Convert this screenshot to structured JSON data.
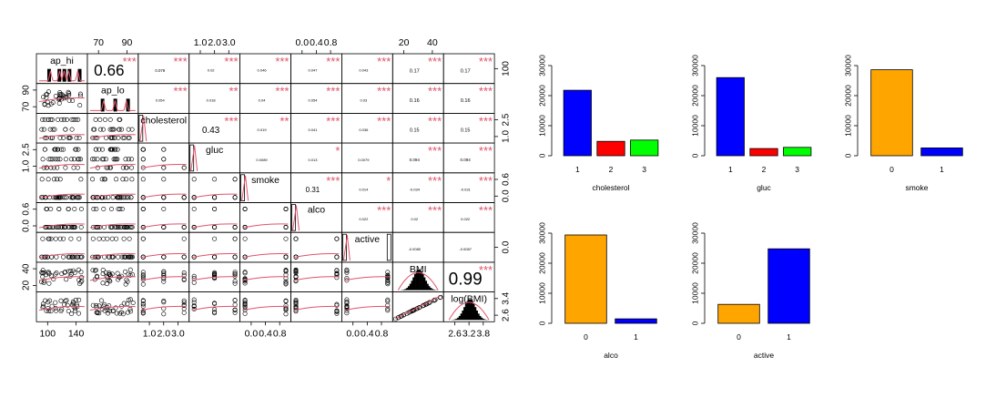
{
  "colors": {
    "smoother": "#df536b",
    "stars": "#df536b",
    "blue": "#0000ff",
    "red": "#ff0000",
    "green": "#00ff00",
    "orange": "#ffa500",
    "axis": "#000000"
  },
  "matrix": {
    "variables": [
      "ap_hi",
      "ap_lo",
      "cholesterol",
      "gluc",
      "smoke",
      "alco",
      "active",
      "BMI",
      "log(BMI)"
    ],
    "top_axis_ticks": {
      "ap_lo": [
        "70",
        "90"
      ],
      "gluc": [
        "1.0",
        "2.0",
        "3.0"
      ],
      "alco": [
        "0.0",
        "0.4",
        "0.8"
      ],
      "BMI": [
        "20",
        "40"
      ]
    },
    "bottom_axis_ticks": {
      "ap_hi": [
        "100",
        "140"
      ],
      "cholesterol": [
        "1.0",
        "2.0",
        "3.0"
      ],
      "smoke": [
        "0.0",
        "0.4",
        "0.8"
      ],
      "active": [
        "0.0",
        "0.4",
        "0.8"
      ],
      "log(BMI)": [
        "2.6",
        "3.2",
        "3.8"
      ]
    },
    "left_axis_ticks": {
      "ap_lo": [
        "70",
        "90"
      ],
      "gluc": [
        "1.0",
        "2.5"
      ],
      "alco": [
        "0.0",
        "0.6"
      ],
      "BMI": [
        "20",
        "40"
      ]
    },
    "right_axis_ticks": {
      "ap_hi": [
        "100"
      ],
      "cholesterol": [
        "1.0",
        "2.5"
      ],
      "smoke": [
        "0.0",
        "0.6"
      ],
      "active": [
        "0.0"
      ],
      "log(BMI)": [
        "2.6",
        "3.4"
      ]
    },
    "correlations": [
      {
        "row": 0,
        "col": 1,
        "label": "0.66",
        "stars": "***"
      },
      {
        "row": 0,
        "col": 2,
        "label": "0.079",
        "stars": "***"
      },
      {
        "row": 0,
        "col": 3,
        "label": "0.02",
        "stars": "***"
      },
      {
        "row": 0,
        "col": 4,
        "label": "0.046",
        "stars": "***"
      },
      {
        "row": 0,
        "col": 5,
        "label": "0.047",
        "stars": "***"
      },
      {
        "row": 0,
        "col": 6,
        "label": "0.043",
        "stars": "***"
      },
      {
        "row": 0,
        "col": 7,
        "label": "0.17",
        "stars": "***"
      },
      {
        "row": 0,
        "col": 8,
        "label": "0.17",
        "stars": "***"
      },
      {
        "row": 1,
        "col": 2,
        "label": "0.054",
        "stars": "***"
      },
      {
        "row": 1,
        "col": 3,
        "label": "0.018",
        "stars": "**"
      },
      {
        "row": 1,
        "col": 4,
        "label": "0.04",
        "stars": "***"
      },
      {
        "row": 1,
        "col": 5,
        "label": "0.054",
        "stars": "***"
      },
      {
        "row": 1,
        "col": 6,
        "label": "0.03",
        "stars": "***"
      },
      {
        "row": 1,
        "col": 7,
        "label": "0.16",
        "stars": "***"
      },
      {
        "row": 1,
        "col": 8,
        "label": "0.16",
        "stars": "***"
      },
      {
        "row": 2,
        "col": 3,
        "label": "0.43",
        "stars": "***"
      },
      {
        "row": 2,
        "col": 4,
        "label": "0.019",
        "stars": "**"
      },
      {
        "row": 2,
        "col": 5,
        "label": "0.041",
        "stars": "***"
      },
      {
        "row": 2,
        "col": 6,
        "label": "0.036",
        "stars": "***"
      },
      {
        "row": 2,
        "col": 7,
        "label": "0.15",
        "stars": "***"
      },
      {
        "row": 2,
        "col": 8,
        "label": "0.15",
        "stars": "***"
      },
      {
        "row": 3,
        "col": 4,
        "label": "0.0089",
        "stars": ""
      },
      {
        "row": 3,
        "col": 5,
        "label": "0.013",
        "stars": "*"
      },
      {
        "row": 3,
        "col": 6,
        "label": "0.0079",
        "stars": ""
      },
      {
        "row": 3,
        "col": 7,
        "label": "0.094",
        "stars": "***"
      },
      {
        "row": 3,
        "col": 8,
        "label": "0.094",
        "stars": "***"
      },
      {
        "row": 4,
        "col": 5,
        "label": "0.31",
        "stars": "***"
      },
      {
        "row": 4,
        "col": 6,
        "label": "0.014",
        "stars": "*"
      },
      {
        "row": 4,
        "col": 7,
        "label": "-0.034",
        "stars": "***"
      },
      {
        "row": 4,
        "col": 8,
        "label": "-0.031",
        "stars": "***"
      },
      {
        "row": 5,
        "col": 6,
        "label": "0.022",
        "stars": "***"
      },
      {
        "row": 5,
        "col": 7,
        "label": "0.02",
        "stars": "***"
      },
      {
        "row": 5,
        "col": 8,
        "label": "0.022",
        "stars": "***"
      },
      {
        "row": 6,
        "col": 7,
        "label": "-0.0080",
        "stars": ""
      },
      {
        "row": 6,
        "col": 8,
        "label": "-0.0087",
        "stars": ""
      },
      {
        "row": 7,
        "col": 8,
        "label": "0.99",
        "stars": "***"
      }
    ]
  },
  "chart_data": [
    {
      "type": "bar",
      "categories": [
        "1",
        "2",
        "3"
      ],
      "values": [
        21800,
        4800,
        5200
      ],
      "xlabel": "cholesterol",
      "ylim": [
        0,
        30000
      ],
      "yticks": [
        "0",
        "10000",
        "20000",
        "30000"
      ],
      "bar_colors": [
        "#0000ff",
        "#ff0000",
        "#00ff00"
      ]
    },
    {
      "type": "bar",
      "categories": [
        "1",
        "2",
        "3"
      ],
      "values": [
        26000,
        2400,
        2800
      ],
      "xlabel": "gluc",
      "ylim": [
        0,
        30000
      ],
      "yticks": [
        "0",
        "10000",
        "20000",
        "30000"
      ],
      "bar_colors": [
        "#0000ff",
        "#ff0000",
        "#00ff00"
      ]
    },
    {
      "type": "bar",
      "categories": [
        "0",
        "1"
      ],
      "values": [
        28600,
        2600
      ],
      "xlabel": "smoke",
      "ylim": [
        0,
        30000
      ],
      "yticks": [
        "0",
        "10000",
        "20000",
        "30000"
      ],
      "bar_colors": [
        "#ffa500",
        "#0000ff"
      ]
    },
    {
      "type": "bar",
      "categories": [
        "0",
        "1"
      ],
      "values": [
        29400,
        1500
      ],
      "xlabel": "alco",
      "ylim": [
        0,
        30000
      ],
      "yticks": [
        "0",
        "10000",
        "20000",
        "30000"
      ],
      "bar_colors": [
        "#ffa500",
        "#0000ff"
      ]
    },
    {
      "type": "bar",
      "categories": [
        "0",
        "1"
      ],
      "values": [
        6300,
        24800
      ],
      "xlabel": "active",
      "ylim": [
        0,
        30000
      ],
      "yticks": [
        "0",
        "10000",
        "20000",
        "30000"
      ],
      "bar_colors": [
        "#ffa500",
        "#0000ff"
      ]
    }
  ]
}
